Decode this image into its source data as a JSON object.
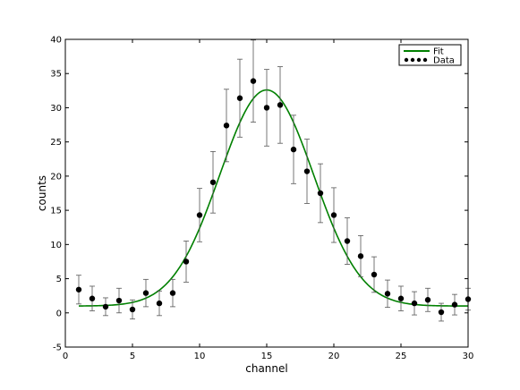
{
  "chart_data": {
    "type": "scatter",
    "title": "",
    "xlabel": "channel",
    "ylabel": "counts",
    "xlim": [
      0,
      30
    ],
    "ylim": [
      -5,
      40
    ],
    "xticks": [
      0,
      5,
      10,
      15,
      20,
      25,
      30
    ],
    "yticks": [
      -5,
      0,
      5,
      10,
      15,
      20,
      25,
      30,
      35,
      40
    ],
    "grid": false,
    "legend": {
      "placement": "top-right",
      "entries": [
        "Fit",
        "Data"
      ]
    },
    "series": [
      {
        "name": "Data",
        "kind": "errorbar-points",
        "color": "#000000",
        "x": [
          1,
          2,
          3,
          4,
          5,
          6,
          7,
          8,
          9,
          10,
          11,
          12,
          13,
          14,
          15,
          16,
          17,
          18,
          19,
          20,
          21,
          22,
          23,
          24,
          25,
          26,
          27,
          28,
          29,
          30
        ],
        "y": [
          3.4,
          2.1,
          0.9,
          1.8,
          0.5,
          2.9,
          1.4,
          2.9,
          7.5,
          14.3,
          19.1,
          27.4,
          31.4,
          33.9,
          30.0,
          30.4,
          23.9,
          20.7,
          17.5,
          14.3,
          10.5,
          8.3,
          5.6,
          2.8,
          2.1,
          1.4,
          1.9,
          0.1,
          1.2,
          2.0
        ],
        "yerr": [
          2.1,
          1.8,
          1.3,
          1.8,
          1.4,
          2.0,
          1.8,
          2.0,
          3.0,
          3.9,
          4.5,
          5.3,
          5.7,
          6.0,
          5.6,
          5.6,
          5.0,
          4.7,
          4.3,
          4.0,
          3.4,
          3.0,
          2.6,
          2.0,
          1.8,
          1.7,
          1.7,
          1.3,
          1.5,
          1.6
        ]
      },
      {
        "name": "Fit",
        "kind": "gaussian-line",
        "color": "#008000",
        "amplitude": 31.6,
        "center": 15.0,
        "sigma": 3.5,
        "offset": 1.0,
        "x_range": [
          1,
          30
        ]
      }
    ]
  }
}
